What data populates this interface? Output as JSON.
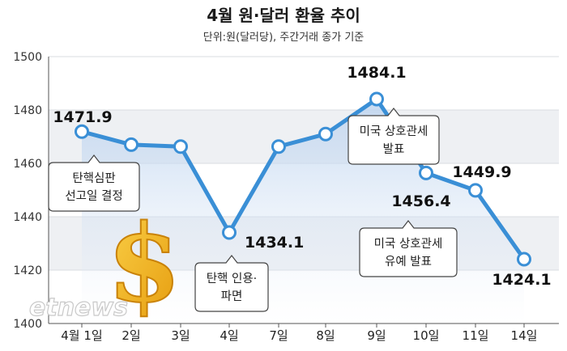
{
  "chart_data": {
    "type": "line",
    "title": "4월 원·달러 환율 추이",
    "subtitle": "단위:원(달러당), 주간거래 종가 기준",
    "categories": [
      "4월 1일",
      "2일",
      "3일",
      "4일",
      "7일",
      "8일",
      "9일",
      "10일",
      "11일",
      "14일"
    ],
    "series": [
      {
        "values": [
          1471.9,
          1467.0,
          1466.3,
          1434.1,
          1466.3,
          1471.0,
          1484.1,
          1456.4,
          1449.9,
          1424.1
        ]
      }
    ],
    "ylim": [
      1400,
      1500
    ],
    "yticks": [
      1400,
      1420,
      1440,
      1460,
      1480,
      1500
    ],
    "yticklabels": [
      "1400",
      "1420",
      "1440",
      "1460",
      "1480",
      "1500"
    ],
    "data_labels": [
      {
        "index": 0,
        "text": "1471.9"
      },
      {
        "index": 3,
        "text": "1434.1"
      },
      {
        "index": 6,
        "text": "1484.1"
      },
      {
        "index": 7,
        "text": "1456.4"
      },
      {
        "index": 8,
        "text": "1449.9"
      },
      {
        "index": 9,
        "text": "1424.1"
      }
    ],
    "annotations": [
      {
        "index": 0,
        "lines": [
          "탄핵심판",
          "선고일 결정"
        ]
      },
      {
        "index": 3,
        "lines": [
          "탄핵 인용·",
          "파면"
        ]
      },
      {
        "index": 6,
        "lines": [
          "미국 상호관세",
          "발표"
        ]
      },
      {
        "index": 8,
        "lines": [
          "미국 상호관세",
          "유예 발표"
        ]
      }
    ],
    "grid": "horizontal bands",
    "colors": {
      "line": "#3a8fd6",
      "marker_fill": "#ffffff",
      "band": "#eef0f3",
      "area": "#c9daf0",
      "dollar": "#f2b316"
    }
  },
  "watermark": "etnews"
}
